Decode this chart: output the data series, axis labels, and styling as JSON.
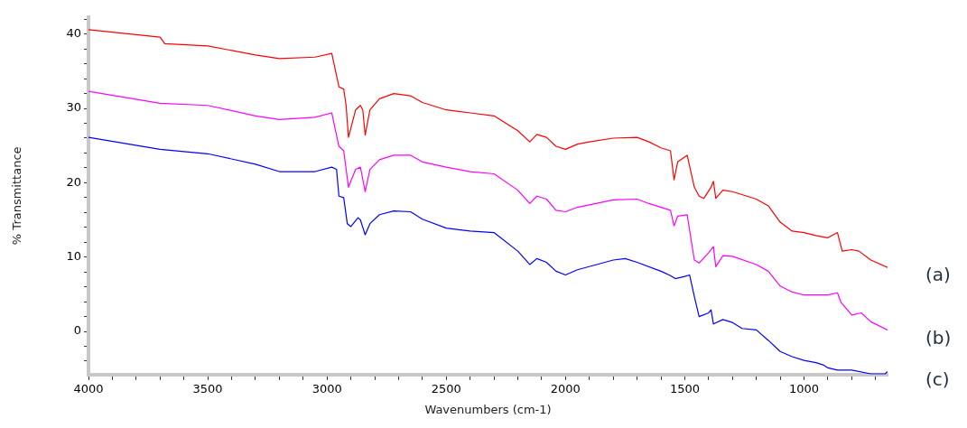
{
  "chart_data": {
    "type": "line",
    "xlabel": "Wavenumbers (cm-1)",
    "ylabel": "% Transmittance",
    "xlim": [
      4000,
      650
    ],
    "ylim": [
      -5.8,
      42.3
    ],
    "xticks": [
      4000,
      {
        "value": 3900,
        "label": null
      },
      {
        "value": 3800,
        "label": null
      },
      {
        "value": 3700,
        "label": null
      },
      {
        "value": 3600,
        "label": null
      },
      3500,
      {
        "value": 3400,
        "label": null
      },
      {
        "value": 3300,
        "label": null
      },
      {
        "value": 3200,
        "label": null
      },
      {
        "value": 3100,
        "label": null
      },
      3000,
      {
        "value": 2900,
        "label": null
      },
      {
        "value": 2800,
        "label": null
      },
      {
        "value": 2700,
        "label": null
      },
      {
        "value": 2600,
        "label": null
      },
      2500,
      {
        "value": 2400,
        "label": null
      },
      {
        "value": 2300,
        "label": null
      },
      {
        "value": 2200,
        "label": null
      },
      {
        "value": 2100,
        "label": null
      },
      2000,
      {
        "value": 1900,
        "label": null
      },
      {
        "value": 1800,
        "label": null
      },
      {
        "value": 1700,
        "label": null
      },
      {
        "value": 1600,
        "label": null
      },
      1500,
      {
        "value": 1400,
        "label": null
      },
      {
        "value": 1300,
        "label": null
      },
      {
        "value": 1200,
        "label": null
      },
      {
        "value": 1100,
        "label": null
      },
      1000,
      {
        "value": 900,
        "label": null
      },
      {
        "value": 800,
        "label": null
      },
      {
        "value": 700,
        "label": null
      }
    ],
    "yticks": [
      {
        "value": -4,
        "label": null
      },
      {
        "value": -2,
        "label": null
      },
      0,
      {
        "value": 2,
        "label": null
      },
      {
        "value": 4,
        "label": null
      },
      {
        "value": 6,
        "label": null
      },
      {
        "value": 8,
        "label": null
      },
      10,
      {
        "value": 12,
        "label": null
      },
      {
        "value": 14,
        "label": null
      },
      {
        "value": 16,
        "label": null
      },
      {
        "value": 18,
        "label": null
      },
      20,
      {
        "value": 22,
        "label": null
      },
      {
        "value": 24,
        "label": null
      },
      {
        "value": 26,
        "label": null
      },
      {
        "value": 28,
        "label": null
      },
      30,
      {
        "value": 32,
        "label": null
      },
      {
        "value": 34,
        "label": null
      },
      {
        "value": 36,
        "label": null
      },
      {
        "value": 38,
        "label": null
      },
      40,
      {
        "value": 42,
        "label": null
      }
    ],
    "grid": false,
    "legend": false,
    "marker": "none",
    "line_style": "solid",
    "series": [
      {
        "name": "(a)",
        "color": "#ff0000",
        "x": [
          4000,
          3700,
          3680,
          3500,
          3300,
          3200,
          3050,
          2980,
          2950,
          2930,
          2920,
          2910,
          2880,
          2860,
          2850,
          2840,
          2820,
          2780,
          2720,
          2650,
          2600,
          2500,
          2400,
          2300,
          2200,
          2150,
          2120,
          2080,
          2040,
          2000,
          1950,
          1900,
          1800,
          1700,
          1650,
          1600,
          1560,
          1545,
          1530,
          1490,
          1460,
          1440,
          1420,
          1390,
          1380,
          1370,
          1340,
          1300,
          1200,
          1150,
          1100,
          1050,
          1000,
          950,
          900,
          860,
          840,
          800,
          770,
          720,
          650
        ],
        "values": [
          40.6,
          39.6,
          38.7,
          38.4,
          37.2,
          36.7,
          36.9,
          37.4,
          32.9,
          32.6,
          30.4,
          26.1,
          29.8,
          30.4,
          29.8,
          26.4,
          29.8,
          31.3,
          32.0,
          31.7,
          30.8,
          29.8,
          29.4,
          29.0,
          27.0,
          25.5,
          26.5,
          26.1,
          24.9,
          24.5,
          25.2,
          25.5,
          26.0,
          26.1,
          25.5,
          24.7,
          24.3,
          20.4,
          22.8,
          23.7,
          19.4,
          18.2,
          17.9,
          19.4,
          20.2,
          17.9,
          19.0,
          18.8,
          17.8,
          16.9,
          14.7,
          13.5,
          13.3,
          12.9,
          12.6,
          13.3,
          10.8,
          11.0,
          10.8,
          9.6,
          8.6
        ]
      },
      {
        "name": "(b)",
        "color": "#ff00ff",
        "x": [
          4000,
          3700,
          3500,
          3300,
          3200,
          3050,
          2980,
          2950,
          2930,
          2910,
          2880,
          2860,
          2840,
          2820,
          2780,
          2720,
          2650,
          2600,
          2500,
          2400,
          2300,
          2200,
          2150,
          2120,
          2080,
          2040,
          2000,
          1950,
          1800,
          1700,
          1650,
          1560,
          1545,
          1530,
          1490,
          1460,
          1440,
          1400,
          1380,
          1370,
          1340,
          1300,
          1200,
          1150,
          1100,
          1050,
          1000,
          900,
          860,
          845,
          800,
          760,
          720,
          650
        ],
        "values": [
          32.3,
          30.7,
          30.4,
          29.0,
          28.5,
          28.8,
          29.4,
          24.9,
          24.3,
          19.4,
          21.8,
          22.1,
          18.8,
          21.8,
          23.1,
          23.7,
          23.7,
          22.8,
          22.1,
          21.5,
          21.2,
          19.0,
          17.2,
          18.2,
          17.8,
          16.3,
          16.1,
          16.7,
          17.7,
          17.8,
          17.2,
          16.3,
          14.2,
          15.5,
          15.7,
          9.6,
          9.2,
          10.6,
          11.4,
          8.7,
          10.2,
          10.1,
          9.0,
          8.1,
          6.1,
          5.3,
          4.9,
          4.9,
          5.2,
          3.9,
          2.2,
          2.5,
          1.3,
          0.2
        ]
      },
      {
        "name": "(c)",
        "color": "#0000ff",
        "x": [
          4000,
          3700,
          3500,
          3300,
          3200,
          3050,
          2980,
          2960,
          2950,
          2930,
          2915,
          2900,
          2870,
          2860,
          2840,
          2820,
          2780,
          2720,
          2650,
          2600,
          2500,
          2400,
          2300,
          2200,
          2150,
          2120,
          2080,
          2040,
          2000,
          1950,
          1800,
          1750,
          1700,
          1600,
          1560,
          1540,
          1500,
          1480,
          1460,
          1440,
          1400,
          1390,
          1380,
          1340,
          1300,
          1260,
          1200,
          1150,
          1100,
          1050,
          1000,
          950,
          920,
          900,
          860,
          800,
          720,
          660,
          650
        ],
        "values": [
          26.1,
          24.5,
          23.9,
          22.5,
          21.5,
          21.5,
          22.1,
          21.8,
          18.2,
          18.0,
          14.5,
          14.1,
          15.3,
          15.0,
          13.0,
          14.5,
          15.7,
          16.2,
          16.1,
          15.1,
          13.9,
          13.5,
          13.3,
          10.8,
          9.0,
          9.8,
          9.3,
          8.1,
          7.6,
          8.3,
          9.6,
          9.8,
          9.3,
          8.1,
          7.5,
          7.1,
          7.4,
          7.6,
          4.7,
          2.0,
          2.5,
          2.9,
          1.0,
          1.6,
          1.2,
          0.4,
          0.2,
          -1.2,
          -2.7,
          -3.4,
          -3.9,
          -4.2,
          -4.5,
          -4.9,
          -5.2,
          -5.2,
          -5.7,
          -5.7,
          -5.4
        ]
      }
    ]
  }
}
